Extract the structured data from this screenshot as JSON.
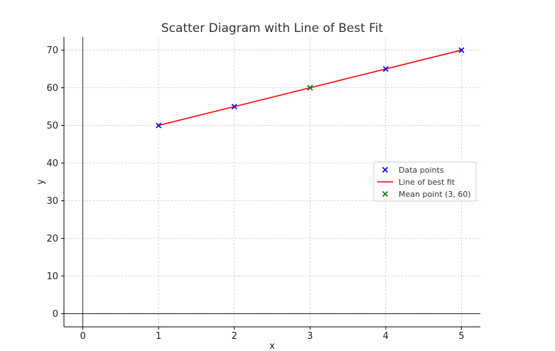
{
  "chart_data": {
    "type": "scatter",
    "title": "Scatter Diagram with Line of Best Fit",
    "xlabel": "x",
    "ylabel": "y",
    "xlim": [
      -0.25,
      5.25
    ],
    "ylim": [
      -3.5,
      73.5
    ],
    "xticks": [
      0,
      1,
      2,
      3,
      4,
      5
    ],
    "yticks": [
      0,
      10,
      20,
      30,
      40,
      50,
      60,
      70
    ],
    "grid": true,
    "legend_position": "right",
    "series": [
      {
        "name": "Data points",
        "kind": "scatter",
        "marker": "x",
        "color": "#0000ff",
        "x": [
          1,
          2,
          3,
          4,
          5
        ],
        "y": [
          50,
          55,
          60,
          65,
          70
        ]
      },
      {
        "name": "Line of best fit",
        "kind": "line",
        "color": "#ff0000",
        "x": [
          1,
          5
        ],
        "y": [
          50,
          70
        ]
      },
      {
        "name": "Mean point (3, 60)",
        "kind": "scatter",
        "marker": "x",
        "color": "#008000",
        "x": [
          3
        ],
        "y": [
          60
        ]
      }
    ]
  }
}
